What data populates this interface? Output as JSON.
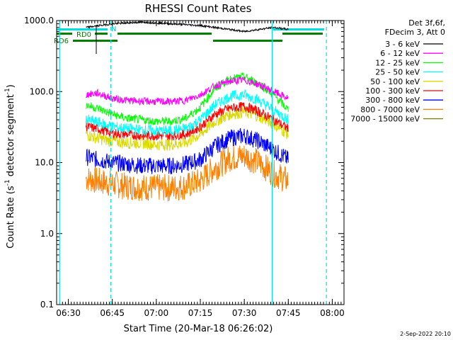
{
  "chart_data": {
    "type": "line",
    "title": "RHESSI Count Rates",
    "xlabel": "Start Time (20-Mar-18 06:26:02)",
    "ylabel_main": "Count Rate (s",
    "ylabel_sup1": "-1",
    "ylabel_mid": " detector segment",
    "ylabel_sup2": "-1",
    "ylabel_end": ")",
    "x_range_min": [
      386,
      484
    ],
    "y_range": [
      0.1,
      1000
    ],
    "yscale": "log",
    "xticks": [
      {
        "label": "06:30",
        "t": 390
      },
      {
        "label": "06:45",
        "t": 405
      },
      {
        "label": "07:00",
        "t": 420
      },
      {
        "label": "07:15",
        "t": 435
      },
      {
        "label": "07:30",
        "t": 450
      },
      {
        "label": "07:45",
        "t": 465
      },
      {
        "label": "08:00",
        "t": 480
      }
    ],
    "yticks": [
      {
        "label": "1000.0",
        "v": 1000
      },
      {
        "label": "100.0",
        "v": 100
      },
      {
        "label": "10.0",
        "v": 10
      },
      {
        "label": "1.0",
        "v": 1
      },
      {
        "label": "0.1",
        "v": 0.1
      }
    ],
    "legend_header": [
      "Det 3f,6f,",
      "FDecim 3, Att 0"
    ],
    "series": [
      {
        "name": "3 - 6 keV",
        "color": "#000000",
        "x": [
          396,
          405,
          415,
          425,
          435,
          445,
          450,
          455,
          460,
          465
        ],
        "y": [
          800,
          900,
          950,
          900,
          850,
          750,
          700,
          750,
          800,
          750
        ]
      },
      {
        "name": "6 - 12 keV",
        "color": "#ff00ff",
        "x": [
          396,
          400,
          405,
          410,
          415,
          420,
          425,
          430,
          435,
          440,
          445,
          450,
          455,
          460,
          465
        ],
        "y": [
          90,
          95,
          80,
          75,
          73,
          72,
          72,
          75,
          90,
          120,
          140,
          145,
          125,
          100,
          80
        ]
      },
      {
        "name": "12 - 25 keV",
        "color": "#00ff00",
        "x": [
          396,
          400,
          405,
          410,
          415,
          420,
          425,
          430,
          435,
          440,
          445,
          450,
          455,
          460,
          465
        ],
        "y": [
          65,
          58,
          48,
          42,
          40,
          38,
          38,
          42,
          60,
          110,
          150,
          160,
          130,
          90,
          55
        ]
      },
      {
        "name": "25 - 50 keV",
        "color": "#00ffff",
        "x": [
          396,
          400,
          405,
          410,
          415,
          420,
          425,
          430,
          435,
          440,
          445,
          450,
          455,
          460,
          465
        ],
        "y": [
          40,
          37,
          32,
          30,
          29,
          28,
          28,
          30,
          40,
          65,
          85,
          90,
          75,
          55,
          40
        ]
      },
      {
        "name": "50 - 100 keV",
        "color": "#d9d900",
        "x": [
          396,
          400,
          405,
          410,
          415,
          420,
          425,
          430,
          435,
          440,
          445,
          450,
          455,
          460,
          465
        ],
        "y": [
          25,
          22,
          20,
          19,
          19,
          18,
          18,
          19,
          25,
          38,
          48,
          52,
          45,
          35,
          25
        ]
      },
      {
        "name": "100 - 300 keV",
        "color": "#ff0000",
        "x": [
          396,
          400,
          405,
          410,
          415,
          420,
          425,
          430,
          435,
          440,
          445,
          450,
          455,
          460,
          465
        ],
        "y": [
          32,
          30,
          26,
          25,
          24,
          24,
          24,
          25,
          32,
          48,
          58,
          62,
          52,
          40,
          30
        ]
      },
      {
        "name": "300 - 800 keV",
        "color": "#0000ff",
        "x": [
          396,
          400,
          405,
          410,
          415,
          420,
          425,
          430,
          435,
          440,
          445,
          450,
          455,
          460,
          465
        ],
        "y": [
          12,
          11,
          10,
          9.5,
          9,
          9,
          9,
          9.5,
          11,
          17,
          22,
          24,
          20,
          15,
          11
        ]
      },
      {
        "name": "800 - 7000 keV",
        "color": "#ff8000",
        "x": [
          396,
          400,
          405,
          410,
          415,
          420,
          425,
          430,
          435,
          440,
          445,
          450,
          455,
          460,
          465
        ],
        "y": [
          6,
          5.5,
          5,
          4.6,
          4.5,
          4.4,
          4.4,
          4.6,
          5.5,
          8.5,
          11.5,
          12.5,
          10,
          7,
          5.5
        ]
      },
      {
        "name": "7000 - 15000 keV",
        "color": "#808000",
        "x": [],
        "y": []
      }
    ],
    "attenuator_labels": [
      "RD0",
      "RD6",
      "N"
    ],
    "footer_date": "2-Sep-2022 20:10"
  }
}
